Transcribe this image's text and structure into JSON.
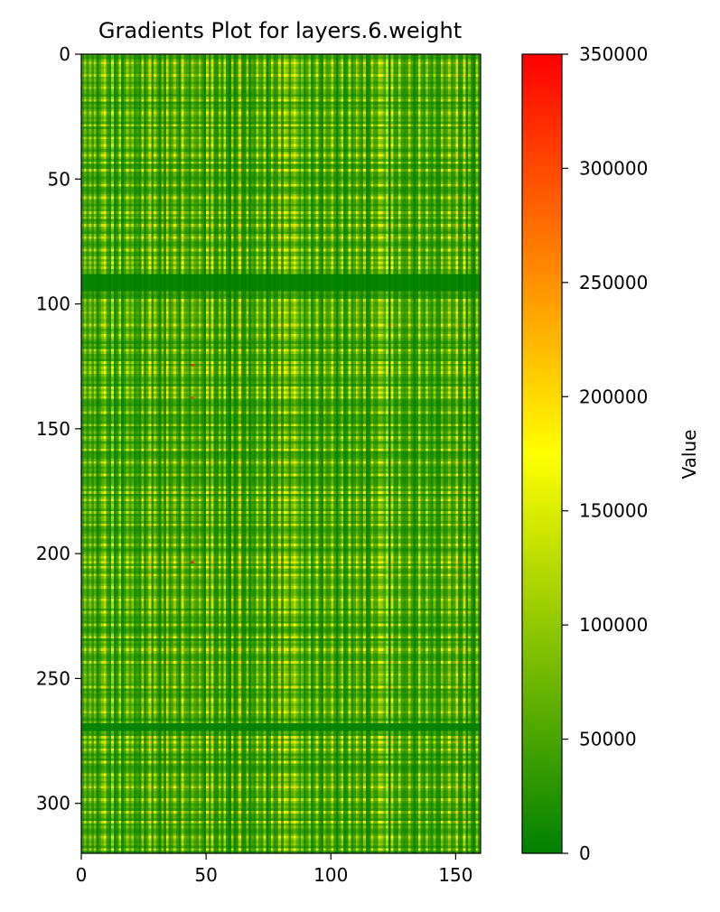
{
  "chart_data": {
    "type": "heatmap",
    "title": "Gradients Plot for layers.6.weight",
    "xlabel": "",
    "ylabel": "",
    "xlim": [
      0,
      160
    ],
    "ylim": [
      320,
      0
    ],
    "rows": 320,
    "cols": 160,
    "x_ticks": [
      0,
      50,
      100,
      150
    ],
    "y_ticks": [
      0,
      50,
      100,
      150,
      200,
      250,
      300
    ],
    "colorbar": {
      "label": "Value",
      "min": 0,
      "max": 350000,
      "ticks": [
        0,
        50000,
        100000,
        150000,
        200000,
        250000,
        300000,
        350000
      ],
      "colormap": [
        {
          "value": 0,
          "color": "#008000"
        },
        {
          "value": 175000,
          "color": "#ffff00"
        },
        {
          "value": 350000,
          "color": "#ff0000"
        }
      ]
    },
    "bright_columns": [
      1,
      3,
      5,
      8,
      9,
      12,
      15,
      18,
      20,
      24,
      27,
      29,
      32,
      34,
      37,
      40,
      44,
      47,
      50,
      52,
      55,
      57,
      60,
      63,
      66,
      70,
      73,
      76,
      79,
      81,
      82,
      84,
      85,
      86,
      88,
      91,
      94,
      97,
      100,
      104,
      107,
      110,
      113,
      116,
      119,
      120,
      122,
      124,
      127,
      131,
      135,
      138,
      141,
      144,
      147,
      150,
      153,
      155,
      158
    ],
    "bright_rows": [
      3,
      8,
      13,
      18,
      23,
      28,
      33,
      36,
      40,
      43,
      46,
      52,
      57,
      63,
      65,
      68,
      73,
      78,
      81,
      83,
      85,
      98,
      103,
      108,
      112,
      118,
      123,
      125,
      127,
      133,
      135,
      137,
      143,
      148,
      153,
      158,
      163,
      168,
      173,
      175,
      178,
      183,
      188,
      193,
      196,
      201,
      203,
      205,
      208,
      213,
      218,
      223,
      228,
      233,
      238,
      243,
      248,
      253,
      258,
      263,
      273,
      275,
      278,
      283,
      288,
      293,
      298,
      303,
      307,
      313,
      318
    ],
    "dark_rows": [
      88,
      89,
      90,
      91,
      92,
      93,
      94,
      268,
      269,
      270
    ],
    "hot_spots": [
      {
        "x": 44,
        "y": 124,
        "value": 330000
      },
      {
        "x": 44,
        "y": 137,
        "value": 300000
      },
      {
        "x": 44,
        "y": 203,
        "value": 330000
      }
    ]
  }
}
